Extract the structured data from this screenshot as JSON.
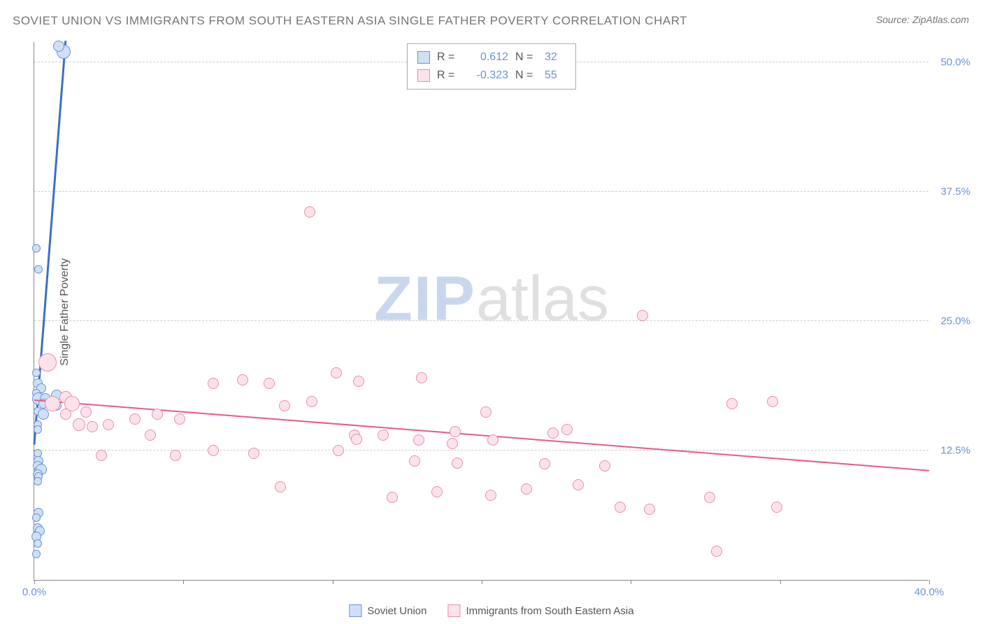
{
  "title": "SOVIET UNION VS IMMIGRANTS FROM SOUTH EASTERN ASIA SINGLE FATHER POVERTY CORRELATION CHART",
  "source": "Source: ZipAtlas.com",
  "ylabel": "Single Father Poverty",
  "watermark": {
    "part1": "ZIP",
    "part2": "atlas"
  },
  "chart": {
    "type": "scatter",
    "background_color": "#ffffff",
    "grid_color": "#cccccc",
    "axis_color": "#888888",
    "xlim": [
      0,
      40
    ],
    "ylim": [
      0,
      52
    ],
    "xticks": [
      0,
      6.67,
      13.33,
      20,
      26.67,
      33.33,
      40
    ],
    "xtick_labels": {
      "0": "0.0%",
      "40": "40.0%"
    },
    "yticks": [
      12.5,
      25.0,
      37.5,
      50.0
    ],
    "ytick_labels": [
      "12.5%",
      "25.0%",
      "37.5%",
      "50.0%"
    ],
    "tick_label_color": "#6b93d6",
    "series": [
      {
        "name": "Soviet Union",
        "R": "0.612",
        "N": "32",
        "fill": "#cfe0f5",
        "stroke": "#6b93d6",
        "marker_radius_range": [
          5,
          11
        ],
        "trend": {
          "x1": 0,
          "y1": 13,
          "x2": 1.4,
          "y2": 52,
          "color": "#3d6fc4",
          "width": 3
        },
        "points": [
          {
            "x": 0.1,
            "y": 32,
            "r": 6
          },
          {
            "x": 0.2,
            "y": 30,
            "r": 6
          },
          {
            "x": 0.1,
            "y": 20,
            "r": 6
          },
          {
            "x": 0.15,
            "y": 19,
            "r": 7
          },
          {
            "x": 0.3,
            "y": 18.5,
            "r": 7
          },
          {
            "x": 0.1,
            "y": 18,
            "r": 6
          },
          {
            "x": 0.2,
            "y": 17.5,
            "r": 9
          },
          {
            "x": 0.5,
            "y": 17.5,
            "r": 8
          },
          {
            "x": 0.4,
            "y": 17,
            "r": 7
          },
          {
            "x": 0.15,
            "y": 16.3,
            "r": 6
          },
          {
            "x": 0.4,
            "y": 16,
            "r": 8
          },
          {
            "x": 0.15,
            "y": 15,
            "r": 6
          },
          {
            "x": 0.15,
            "y": 14.5,
            "r": 6
          },
          {
            "x": 0.15,
            "y": 12.2,
            "r": 6
          },
          {
            "x": 0.2,
            "y": 11.5,
            "r": 7
          },
          {
            "x": 0.15,
            "y": 11,
            "r": 7
          },
          {
            "x": 0.2,
            "y": 10.5,
            "r": 7
          },
          {
            "x": 0.3,
            "y": 10.7,
            "r": 8
          },
          {
            "x": 0.15,
            "y": 10.2,
            "r": 7
          },
          {
            "x": 0.2,
            "y": 10,
            "r": 6
          },
          {
            "x": 0.15,
            "y": 9.5,
            "r": 6
          },
          {
            "x": 0.2,
            "y": 6.5,
            "r": 7
          },
          {
            "x": 0.1,
            "y": 6,
            "r": 6
          },
          {
            "x": 0.15,
            "y": 5,
            "r": 7
          },
          {
            "x": 0.25,
            "y": 4.7,
            "r": 7
          },
          {
            "x": 0.1,
            "y": 4.2,
            "r": 7
          },
          {
            "x": 0.15,
            "y": 3.5,
            "r": 6
          },
          {
            "x": 0.1,
            "y": 2.5,
            "r": 6
          },
          {
            "x": 1.3,
            "y": 51,
            "r": 10
          },
          {
            "x": 1.1,
            "y": 51.5,
            "r": 8
          },
          {
            "x": 1.0,
            "y": 17.8,
            "r": 8
          },
          {
            "x": 1.0,
            "y": 16.8,
            "r": 7
          }
        ]
      },
      {
        "name": "Immigrants from South Eastern Asia",
        "R": "-0.323",
        "N": "55",
        "fill": "#fce3e9",
        "stroke": "#e890a8",
        "marker_radius_range": [
          7,
          13
        ],
        "trend": {
          "x1": 0,
          "y1": 17.3,
          "x2": 40,
          "y2": 10.5,
          "color": "#e65a8a",
          "width": 2
        },
        "points": [
          {
            "x": 0.6,
            "y": 21,
            "r": 13
          },
          {
            "x": 0.8,
            "y": 17,
            "r": 11
          },
          {
            "x": 1.4,
            "y": 17.6,
            "r": 9
          },
          {
            "x": 1.7,
            "y": 17,
            "r": 11
          },
          {
            "x": 1.4,
            "y": 16,
            "r": 8
          },
          {
            "x": 2.3,
            "y": 16.2,
            "r": 8
          },
          {
            "x": 2.0,
            "y": 15,
            "r": 9
          },
          {
            "x": 2.6,
            "y": 14.8,
            "r": 8
          },
          {
            "x": 3.3,
            "y": 15,
            "r": 8
          },
          {
            "x": 3.0,
            "y": 12,
            "r": 8
          },
          {
            "x": 4.5,
            "y": 15.5,
            "r": 8
          },
          {
            "x": 5.5,
            "y": 16,
            "r": 8
          },
          {
            "x": 5.2,
            "y": 14,
            "r": 8
          },
          {
            "x": 6.5,
            "y": 15.5,
            "r": 8
          },
          {
            "x": 6.3,
            "y": 12,
            "r": 8
          },
          {
            "x": 8.0,
            "y": 12.5,
            "r": 8
          },
          {
            "x": 8.0,
            "y": 19,
            "r": 8
          },
          {
            "x": 9.3,
            "y": 19.3,
            "r": 8
          },
          {
            "x": 9.8,
            "y": 12.2,
            "r": 8
          },
          {
            "x": 10.5,
            "y": 19,
            "r": 8
          },
          {
            "x": 11.2,
            "y": 16.8,
            "r": 8
          },
          {
            "x": 11.0,
            "y": 9,
            "r": 8
          },
          {
            "x": 12.3,
            "y": 35.5,
            "r": 8
          },
          {
            "x": 12.4,
            "y": 17.2,
            "r": 8
          },
          {
            "x": 13.5,
            "y": 20,
            "r": 8
          },
          {
            "x": 13.6,
            "y": 12.5,
            "r": 8
          },
          {
            "x": 14.5,
            "y": 19.2,
            "r": 8
          },
          {
            "x": 14.3,
            "y": 14,
            "r": 8
          },
          {
            "x": 14.4,
            "y": 13.6,
            "r": 8
          },
          {
            "x": 15.6,
            "y": 14,
            "r": 8
          },
          {
            "x": 16.0,
            "y": 8,
            "r": 8
          },
          {
            "x": 17.3,
            "y": 19.5,
            "r": 8
          },
          {
            "x": 17.2,
            "y": 13.5,
            "r": 8
          },
          {
            "x": 17.0,
            "y": 11.5,
            "r": 8
          },
          {
            "x": 18.0,
            "y": 8.5,
            "r": 8
          },
          {
            "x": 18.8,
            "y": 14.3,
            "r": 8
          },
          {
            "x": 18.7,
            "y": 13.2,
            "r": 8
          },
          {
            "x": 18.9,
            "y": 11.3,
            "r": 8
          },
          {
            "x": 20.2,
            "y": 16.2,
            "r": 8
          },
          {
            "x": 20.5,
            "y": 13.5,
            "r": 8
          },
          {
            "x": 20.4,
            "y": 8.2,
            "r": 8
          },
          {
            "x": 22.0,
            "y": 8.8,
            "r": 8
          },
          {
            "x": 23.2,
            "y": 14.2,
            "r": 8
          },
          {
            "x": 22.8,
            "y": 11.2,
            "r": 8
          },
          {
            "x": 23.8,
            "y": 14.5,
            "r": 8
          },
          {
            "x": 24.3,
            "y": 9.2,
            "r": 8
          },
          {
            "x": 25.5,
            "y": 11,
            "r": 8
          },
          {
            "x": 26.2,
            "y": 7,
            "r": 8
          },
          {
            "x": 27.2,
            "y": 25.5,
            "r": 8
          },
          {
            "x": 27.5,
            "y": 6.8,
            "r": 8
          },
          {
            "x": 30.2,
            "y": 8,
            "r": 8
          },
          {
            "x": 30.5,
            "y": 2.8,
            "r": 8
          },
          {
            "x": 31.2,
            "y": 17,
            "r": 8
          },
          {
            "x": 33.0,
            "y": 17.2,
            "r": 8
          },
          {
            "x": 33.2,
            "y": 7,
            "r": 8
          }
        ]
      }
    ]
  },
  "legend_top": [
    {
      "swatch_fill": "#cfe0f5",
      "swatch_stroke": "#6b93d6",
      "R": "0.612",
      "N": "32"
    },
    {
      "swatch_fill": "#fce3e9",
      "swatch_stroke": "#e890a8",
      "R": "-0.323",
      "N": "55"
    }
  ],
  "legend_bottom": [
    {
      "swatch_fill": "#cfe0f5",
      "swatch_stroke": "#6b93d6",
      "label": "Soviet Union"
    },
    {
      "swatch_fill": "#fce3e9",
      "swatch_stroke": "#e890a8",
      "label": "Immigrants from South Eastern Asia"
    }
  ]
}
